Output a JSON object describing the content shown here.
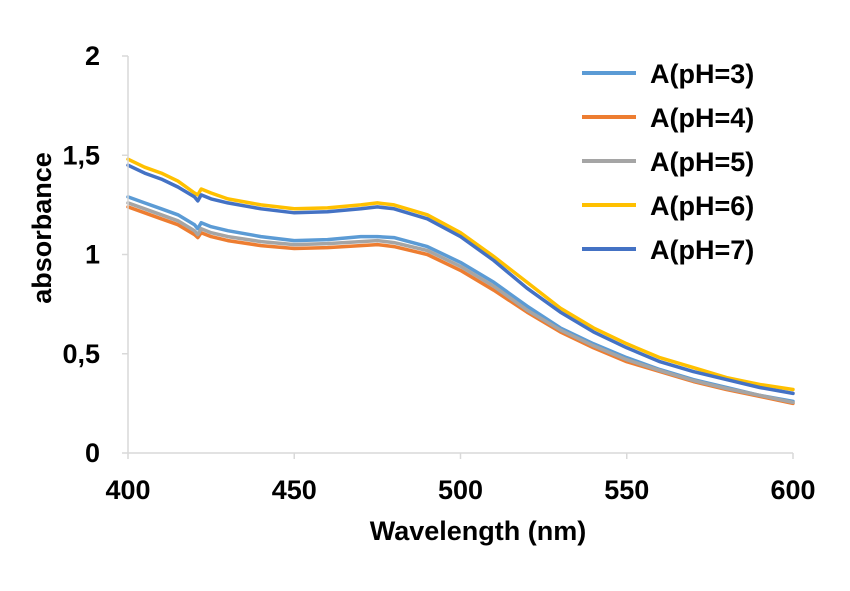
{
  "chart_data": {
    "type": "line",
    "title": "",
    "xlabel": "Wavelength (nm)",
    "ylabel": "absorbance",
    "xlim": [
      400,
      600
    ],
    "ylim": [
      0,
      2
    ],
    "x_ticks": [
      400,
      450,
      500,
      550,
      600
    ],
    "x_tick_labels": [
      "400",
      "450",
      "500",
      "550",
      "600"
    ],
    "y_ticks": [
      0,
      0.5,
      1,
      1.5,
      2
    ],
    "y_tick_labels": [
      "0",
      "0,5",
      "1",
      "1,5",
      "2"
    ],
    "grid": false,
    "legend_position": "top-right",
    "x": [
      400,
      405,
      410,
      415,
      420,
      421,
      422,
      425,
      430,
      440,
      450,
      460,
      470,
      475,
      480,
      490,
      500,
      510,
      520,
      530,
      540,
      550,
      560,
      570,
      580,
      590,
      600
    ],
    "series": [
      {
        "name": "A(pH=3)",
        "color": "#5B9BD5",
        "values": [
          1.29,
          1.26,
          1.23,
          1.2,
          1.15,
          1.13,
          1.16,
          1.14,
          1.12,
          1.09,
          1.07,
          1.075,
          1.09,
          1.09,
          1.085,
          1.04,
          0.96,
          0.86,
          0.74,
          0.63,
          0.55,
          0.48,
          0.42,
          0.37,
          0.33,
          0.29,
          0.26
        ]
      },
      {
        "name": "A(pH=4)",
        "color": "#ED7D31",
        "values": [
          1.24,
          1.21,
          1.18,
          1.15,
          1.1,
          1.085,
          1.11,
          1.09,
          1.07,
          1.045,
          1.03,
          1.035,
          1.045,
          1.05,
          1.04,
          1.0,
          0.92,
          0.82,
          0.71,
          0.61,
          0.53,
          0.46,
          0.41,
          0.36,
          0.32,
          0.285,
          0.25
        ]
      },
      {
        "name": "A(pH=5)",
        "color": "#A5A5A5",
        "values": [
          1.26,
          1.23,
          1.2,
          1.17,
          1.12,
          1.1,
          1.13,
          1.11,
          1.09,
          1.065,
          1.05,
          1.055,
          1.065,
          1.07,
          1.06,
          1.02,
          0.94,
          0.84,
          0.72,
          0.62,
          0.54,
          0.47,
          0.415,
          0.365,
          0.325,
          0.29,
          0.255
        ]
      },
      {
        "name": "A(pH=6)",
        "color": "#FFC000",
        "values": [
          1.48,
          1.44,
          1.41,
          1.37,
          1.31,
          1.3,
          1.33,
          1.31,
          1.28,
          1.25,
          1.23,
          1.235,
          1.25,
          1.26,
          1.25,
          1.2,
          1.11,
          0.99,
          0.86,
          0.73,
          0.63,
          0.55,
          0.48,
          0.43,
          0.38,
          0.345,
          0.32
        ]
      },
      {
        "name": "A(pH=7)",
        "color": "#4472C4",
        "values": [
          1.45,
          1.41,
          1.38,
          1.34,
          1.29,
          1.27,
          1.3,
          1.28,
          1.26,
          1.23,
          1.21,
          1.215,
          1.23,
          1.24,
          1.23,
          1.18,
          1.09,
          0.97,
          0.83,
          0.71,
          0.61,
          0.53,
          0.46,
          0.41,
          0.37,
          0.33,
          0.3
        ]
      }
    ]
  }
}
